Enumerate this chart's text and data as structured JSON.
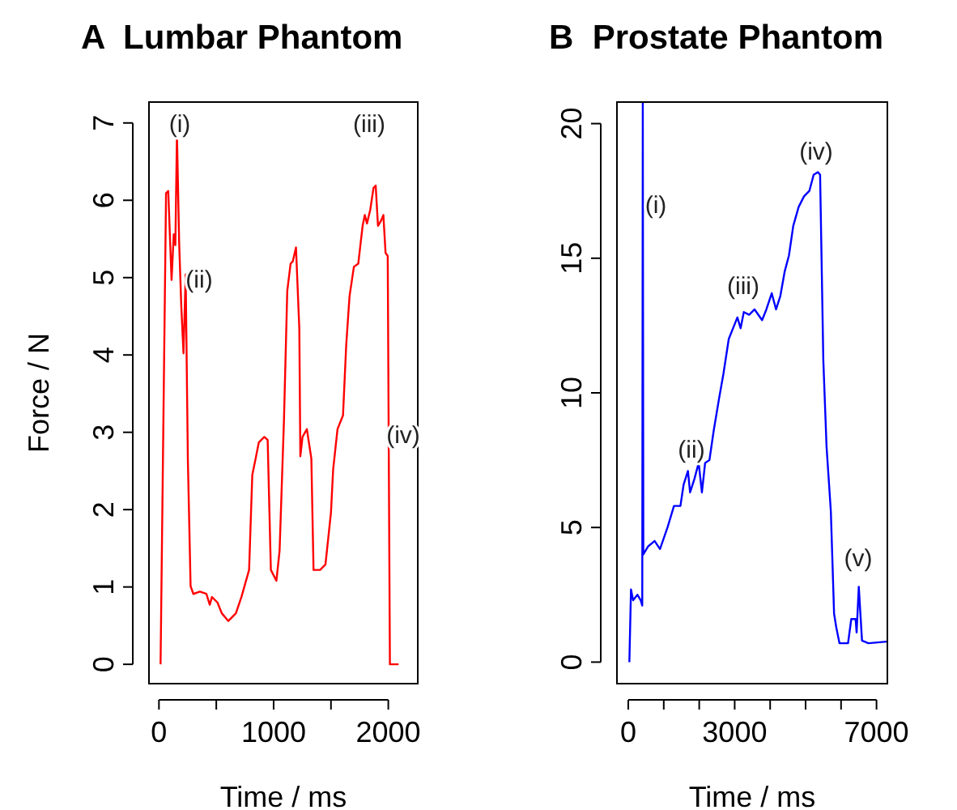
{
  "chart_data": [
    {
      "type": "line",
      "title": "A  Lumbar Phantom",
      "xlabel": "Time / ms",
      "ylabel": "Force / N",
      "xlim": [
        -87,
        2257
      ],
      "ylim": [
        -0.25,
        7.27
      ],
      "xticks": [
        0,
        {
          "value": 500,
          "label": null
        },
        1000,
        {
          "value": 1500,
          "label": null
        },
        2000
      ],
      "yticks": [
        0,
        1,
        2,
        3,
        4,
        5,
        6,
        7
      ],
      "marker": "none",
      "line_style": "solid",
      "series": [
        {
          "color": "#ff0000",
          "x": [
            14,
            62,
            81,
            110,
            129,
            143,
            157,
            176,
            195,
            214,
            233,
            252,
            276,
            300,
            357,
            414,
            443,
            462,
            510,
            548,
            605,
            671,
            719,
            786,
            814,
            843,
            871,
            919,
            948,
            976,
            1024,
            1052,
            1090,
            1119,
            1148,
            1167,
            1195,
            1224,
            1233,
            1252,
            1290,
            1329,
            1348,
            1405,
            1452,
            1500,
            1519,
            1557,
            1605,
            1633,
            1662,
            1700,
            1738,
            1776,
            1795,
            1814,
            1843,
            1871,
            1890,
            1910,
            1938,
            1957,
            1976,
            1995,
            2014,
            2090
          ],
          "values": [
            0,
            6.09,
            6.12,
            4.97,
            5.56,
            5.42,
            6.86,
            5.46,
            4.62,
            4.02,
            5.04,
            2.66,
            1.01,
            0.91,
            0.94,
            0.91,
            0.77,
            0.87,
            0.8,
            0.66,
            0.56,
            0.66,
            0.87,
            1.22,
            2.45,
            2.66,
            2.87,
            2.94,
            2.9,
            1.22,
            1.08,
            1.47,
            3.15,
            4.83,
            5.18,
            5.21,
            5.39,
            4.34,
            2.69,
            2.94,
            3.04,
            2.66,
            1.22,
            1.22,
            1.29,
            1.96,
            2.52,
            3.04,
            3.22,
            4.13,
            4.76,
            5.14,
            5.18,
            5.67,
            5.81,
            5.7,
            5.88,
            6.16,
            6.19,
            5.67,
            5.74,
            5.81,
            5.32,
            5.28,
            0,
            0
          ]
        }
      ],
      "annotations": [
        "(i)",
        "(ii)",
        "(iii)",
        "(iv)"
      ]
    },
    {
      "type": "line",
      "title": "B  Prostate Phantom",
      "xlabel": "Time / ms",
      "xlim": [
        -320,
        7306
      ],
      "ylim": [
        -0.8,
        20.8
      ],
      "xticks": [
        0,
        {
          "value": 1000,
          "label": null
        },
        {
          "value": 2000,
          "label": null
        },
        3000,
        {
          "value": 4000,
          "label": null
        },
        {
          "value": 5000,
          "label": null
        },
        {
          "value": 6000,
          "label": null
        },
        7000
      ],
      "yticks": [
        0,
        5,
        10,
        15,
        20
      ],
      "marker": "none",
      "line_style": "solid",
      "series": [
        {
          "color": "#0000ff",
          "x": [
            30,
            76,
            136,
            258,
            348,
            394,
            409,
            424,
            561,
            742,
            894,
            1106,
            1288,
            1470,
            1561,
            1682,
            1742,
            1864,
            1985,
            2076,
            2167,
            2288,
            2409,
            2561,
            2682,
            2833,
            2985,
            3076,
            3167,
            3258,
            3409,
            3561,
            3773,
            3894,
            4045,
            4167,
            4288,
            4409,
            4530,
            4652,
            4803,
            4955,
            5106,
            5227,
            5348,
            5409,
            5500,
            5591,
            5712,
            5803,
            5864,
            5955,
            6197,
            6288,
            6409,
            6439,
            6500,
            6591,
            6773,
            7288
          ],
          "values": [
            0,
            2.7,
            2.3,
            2.5,
            2.3,
            2.1,
            20.8,
            4.0,
            4.3,
            4.5,
            4.2,
            5.0,
            5.8,
            5.8,
            6.6,
            7.1,
            6.3,
            6.8,
            7.4,
            6.3,
            7.4,
            7.5,
            8.6,
            9.8,
            10.7,
            12.0,
            12.5,
            12.8,
            12.4,
            13.0,
            12.9,
            13.1,
            12.7,
            13.1,
            13.7,
            13.1,
            13.6,
            14.5,
            15.1,
            16.2,
            16.9,
            17.3,
            17.5,
            18.1,
            18.2,
            18.1,
            11.2,
            8.0,
            5.6,
            1.8,
            1.3,
            0.7,
            0.7,
            1.6,
            1.6,
            1.1,
            2.8,
            0.8,
            0.7,
            0.76
          ]
        }
      ],
      "annotations": [
        "(i)",
        "(ii)",
        "(iii)",
        "(iv)",
        "(v)"
      ]
    }
  ]
}
